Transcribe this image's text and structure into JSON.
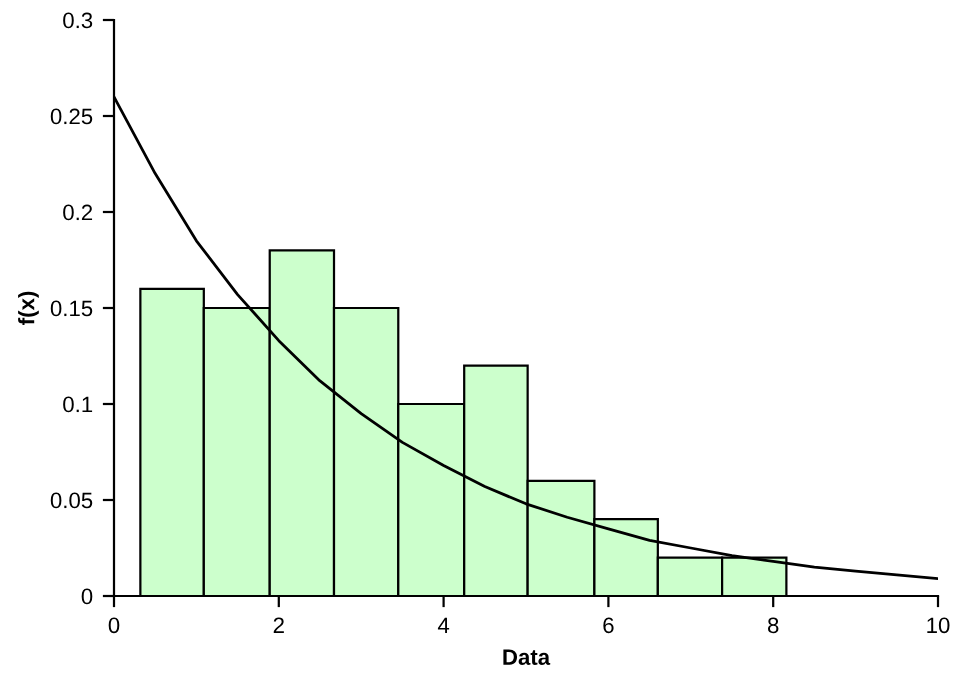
{
  "chart_data": {
    "type": "histogram",
    "xlabel": "Data",
    "ylabel": "f(x)",
    "xlim": [
      0,
      10
    ],
    "xticks": [
      0,
      2,
      4,
      6,
      8,
      10
    ],
    "ylim": [
      0,
      0.3
    ],
    "yticks": [
      0,
      0.05,
      0.1,
      0.15,
      0.2,
      0.25,
      0.3
    ],
    "grid": false,
    "legend": false,
    "series": [
      {
        "color": "#ccffcc",
        "bins": [
          0.32,
          1.09,
          1.89,
          2.67,
          3.45,
          4.25,
          5.02,
          5.83,
          6.6,
          7.38,
          8.16
        ],
        "values": [
          0.16,
          0.15,
          0.18,
          0.15,
          0.1,
          0.12,
          0.06,
          0.04,
          0.02,
          0.02
        ]
      },
      {
        "type": "line",
        "color": "#000000",
        "x": [
          0,
          0.5,
          1,
          1.5,
          2,
          2.5,
          3,
          3.5,
          4,
          4.5,
          5,
          5.5,
          6,
          6.5,
          7,
          7.5,
          8,
          8.5,
          9,
          9.5,
          10
        ],
        "values": [
          0.26,
          0.22,
          0.185,
          0.157,
          0.133,
          0.112,
          0.095,
          0.08,
          0.068,
          0.057,
          0.048,
          0.041,
          0.035,
          0.029,
          0.025,
          0.021,
          0.018,
          0.015,
          0.013,
          0.011,
          0.009
        ]
      }
    ]
  }
}
